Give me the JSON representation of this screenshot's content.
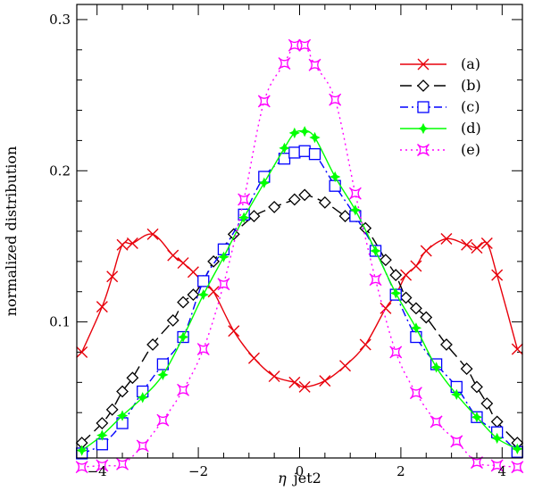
{
  "chart_data": {
    "type": "line",
    "xlabel_symbol": "η",
    "xlabel_text": "jet2",
    "ylabel": "normalized distribution",
    "xlim": [
      -4.4,
      4.4
    ],
    "ylim": [
      0.01,
      0.31
    ],
    "x_ticks": [
      -4,
      -2,
      0,
      2,
      4
    ],
    "x_tick_labels": [
      "−4",
      "−2",
      "0",
      "2",
      "4"
    ],
    "y_ticks": [
      0.1,
      0.2,
      0.3
    ],
    "y_tick_labels": [
      "0.1",
      "0.2",
      "0.3"
    ],
    "grid": false,
    "legend_position": "top-right",
    "series": [
      {
        "name": "(a)",
        "color": "#e8000b",
        "dash": "solid",
        "marker": "x",
        "x": [
          -4.3,
          -3.9,
          -3.7,
          -3.5,
          -3.3,
          -2.9,
          -2.5,
          -2.3,
          -2.1,
          -1.9,
          -1.7,
          -1.3,
          -0.9,
          -0.5,
          -0.1,
          0.1,
          0.5,
          0.9,
          1.3,
          1.7,
          1.9,
          2.1,
          2.3,
          2.5,
          2.9,
          3.3,
          3.5,
          3.7,
          3.9,
          4.3
        ],
        "values": [
          0.08,
          0.11,
          0.13,
          0.151,
          0.152,
          0.158,
          0.144,
          0.139,
          0.133,
          0.126,
          0.12,
          0.094,
          0.076,
          0.064,
          0.06,
          0.057,
          0.061,
          0.071,
          0.085,
          0.109,
          0.118,
          0.131,
          0.137,
          0.147,
          0.155,
          0.151,
          0.149,
          0.152,
          0.131,
          0.082
        ]
      },
      {
        "name": "(b)",
        "color": "#000000",
        "dash": "long-dash",
        "marker": "diamond",
        "x": [
          -4.3,
          -3.9,
          -3.7,
          -3.5,
          -3.3,
          -2.9,
          -2.5,
          -2.3,
          -2.1,
          -1.9,
          -1.7,
          -1.3,
          -0.9,
          -0.5,
          -0.1,
          0.1,
          0.5,
          0.9,
          1.3,
          1.7,
          1.9,
          2.1,
          2.3,
          2.5,
          2.9,
          3.3,
          3.5,
          3.7,
          3.9,
          4.3
        ],
        "values": [
          0.02,
          0.033,
          0.042,
          0.054,
          0.063,
          0.085,
          0.101,
          0.113,
          0.118,
          0.127,
          0.14,
          0.158,
          0.17,
          0.176,
          0.181,
          0.184,
          0.179,
          0.17,
          0.162,
          0.141,
          0.131,
          0.116,
          0.109,
          0.103,
          0.085,
          0.069,
          0.057,
          0.046,
          0.034,
          0.02
        ]
      },
      {
        "name": "(c)",
        "color": "#0000ff",
        "dash": "dash-dot",
        "marker": "square",
        "x": [
          -4.3,
          -3.9,
          -3.5,
          -3.1,
          -2.7,
          -2.3,
          -1.9,
          -1.5,
          -1.1,
          -0.7,
          -0.3,
          -0.1,
          0.1,
          0.3,
          0.7,
          1.1,
          1.5,
          1.9,
          2.3,
          2.7,
          3.1,
          3.5,
          3.9,
          4.3
        ],
        "values": [
          0.013,
          0.019,
          0.033,
          0.054,
          0.072,
          0.09,
          0.127,
          0.148,
          0.171,
          0.196,
          0.208,
          0.212,
          0.213,
          0.211,
          0.19,
          0.17,
          0.147,
          0.118,
          0.09,
          0.072,
          0.057,
          0.037,
          0.027,
          0.014
        ]
      },
      {
        "name": "(d)",
        "color": "#00ff00",
        "dash": "solid",
        "marker": "star",
        "x": [
          -4.3,
          -3.9,
          -3.5,
          -3.1,
          -2.7,
          -2.3,
          -1.9,
          -1.5,
          -1.1,
          -0.7,
          -0.3,
          -0.1,
          0.1,
          0.3,
          0.7,
          1.1,
          1.5,
          1.9,
          2.3,
          2.7,
          3.1,
          3.5,
          3.9,
          4.3
        ],
        "values": [
          0.015,
          0.025,
          0.038,
          0.05,
          0.065,
          0.09,
          0.118,
          0.143,
          0.169,
          0.192,
          0.215,
          0.225,
          0.226,
          0.222,
          0.196,
          0.174,
          0.147,
          0.119,
          0.096,
          0.07,
          0.052,
          0.037,
          0.023,
          0.016
        ]
      },
      {
        "name": "(e)",
        "color": "#ff00ff",
        "dash": "dotted",
        "marker": "astroid",
        "x": [
          -4.3,
          -3.9,
          -3.5,
          -3.1,
          -2.7,
          -2.3,
          -1.9,
          -1.5,
          -1.1,
          -0.7,
          -0.3,
          -0.1,
          0.1,
          0.3,
          0.7,
          1.1,
          1.5,
          1.9,
          2.3,
          2.7,
          3.1,
          3.5,
          3.9,
          4.3
        ],
        "values": [
          0.004,
          0.005,
          0.006,
          0.018,
          0.035,
          0.055,
          0.082,
          0.125,
          0.181,
          0.246,
          0.271,
          0.283,
          0.283,
          0.27,
          0.247,
          0.185,
          0.128,
          0.08,
          0.053,
          0.034,
          0.021,
          0.007,
          0.005,
          0.004
        ]
      }
    ]
  }
}
